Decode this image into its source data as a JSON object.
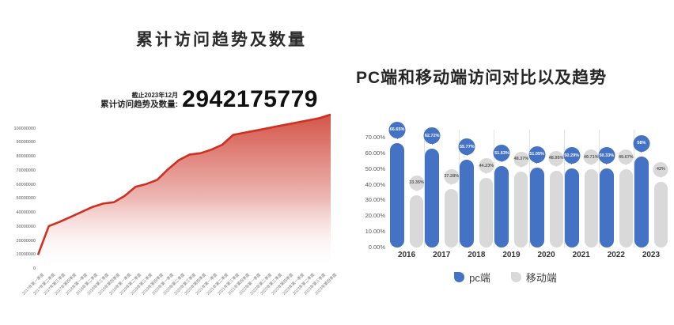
{
  "left_chart": {
    "title": "累计访问趋势及数量",
    "as_of": "截止2023年12月",
    "metric_label": "累计访问趋势及数量:",
    "total": "2942175779"
  },
  "right_chart": {
    "title": "PC端和移动端访问对比以及趋势",
    "legend": {
      "pc": "pc端",
      "mobile": "移动端"
    }
  },
  "colors": {
    "red_line": "#cf2e21",
    "red_fill_top": "#d0463a",
    "blue": "#4472c4",
    "gray": "#d9d9d9"
  },
  "chart_data": [
    {
      "type": "area",
      "title": "累计访问趋势及数量",
      "x": [
        "2017年第一季度",
        "2017年第二季度",
        "2017年第三季度",
        "2017年第四季度",
        "2018年第一季度",
        "2018年第二季度",
        "2018年第三季度",
        "2018年第四季度",
        "2019年第一季度",
        "2019年第二季度",
        "2019年第三季度",
        "2019年第四季度",
        "2020年第一季度",
        "2020年第二季度",
        "2020年第三季度",
        "2020年第四季度",
        "2021年第一季度",
        "2021年第二季度",
        "2021年第三季度",
        "2021年第四季度",
        "2022年第一季度",
        "2022年第二季度",
        "2022年第三季度",
        "2022年第四季度",
        "2023年第一季度",
        "2023年第二季度",
        "2023年第三季度",
        "2023年第四季度"
      ],
      "values": [
        10000000,
        30500000,
        33500000,
        37000000,
        40500000,
        44000000,
        46500000,
        47500000,
        52000000,
        58500000,
        60500000,
        63500000,
        71000000,
        77500000,
        81500000,
        82500000,
        85000000,
        88500000,
        95500000,
        97000000,
        98500000,
        100000000,
        101500000,
        103000000,
        104500000,
        106000000,
        107500000,
        110000000
      ],
      "yticks": [
        0,
        10000000,
        20000000,
        30000000,
        40000000,
        50000000,
        60000000,
        70000000,
        80000000,
        90000000,
        100000000
      ],
      "yticks_labels": [
        "0",
        "10000000",
        "20000000",
        "30000000",
        "40000000",
        "50000000",
        "60000000",
        "70000000",
        "80000000",
        "90000000",
        "100000000"
      ],
      "ylim": [
        0,
        115000000
      ],
      "grid": false,
      "legend_position": "none"
    },
    {
      "type": "bar",
      "title": "PC端和移动端访问对比以及趋势",
      "categories": [
        "2016",
        "2017",
        "2018",
        "2019",
        "2020",
        "2021",
        "2022",
        "2023"
      ],
      "series": [
        {
          "name": "pc端",
          "color": "#4472c4",
          "values": [
            66.65,
            62.72,
            55.77,
            51.63,
            51.05,
            50.29,
            50.33,
            58
          ],
          "labels": [
            "66.65%",
            "62.72%",
            "55.77%",
            "51.63%",
            "51.05%",
            "50.29%",
            "50.33%",
            "58%"
          ]
        },
        {
          "name": "移动端",
          "color": "#d9d9d9",
          "values": [
            33.35,
            37.28,
            44.23,
            48.37,
            48.95,
            49.71,
            49.67,
            42
          ],
          "labels": [
            "33.35%",
            "37.28%",
            "44.23%",
            "48.37%",
            "48.95%",
            "49.71%",
            "49.67%",
            "42%"
          ]
        }
      ],
      "yticks": [
        0,
        10,
        20,
        30,
        40,
        50,
        60,
        70
      ],
      "yticks_labels": [
        "0.00%",
        "10.00%",
        "20.00%",
        "30.00%",
        "40.00%",
        "50.00%",
        "60.00%",
        "70.00%"
      ],
      "ylim": [
        0,
        80
      ],
      "grid": false,
      "legend_position": "bottom"
    }
  ]
}
